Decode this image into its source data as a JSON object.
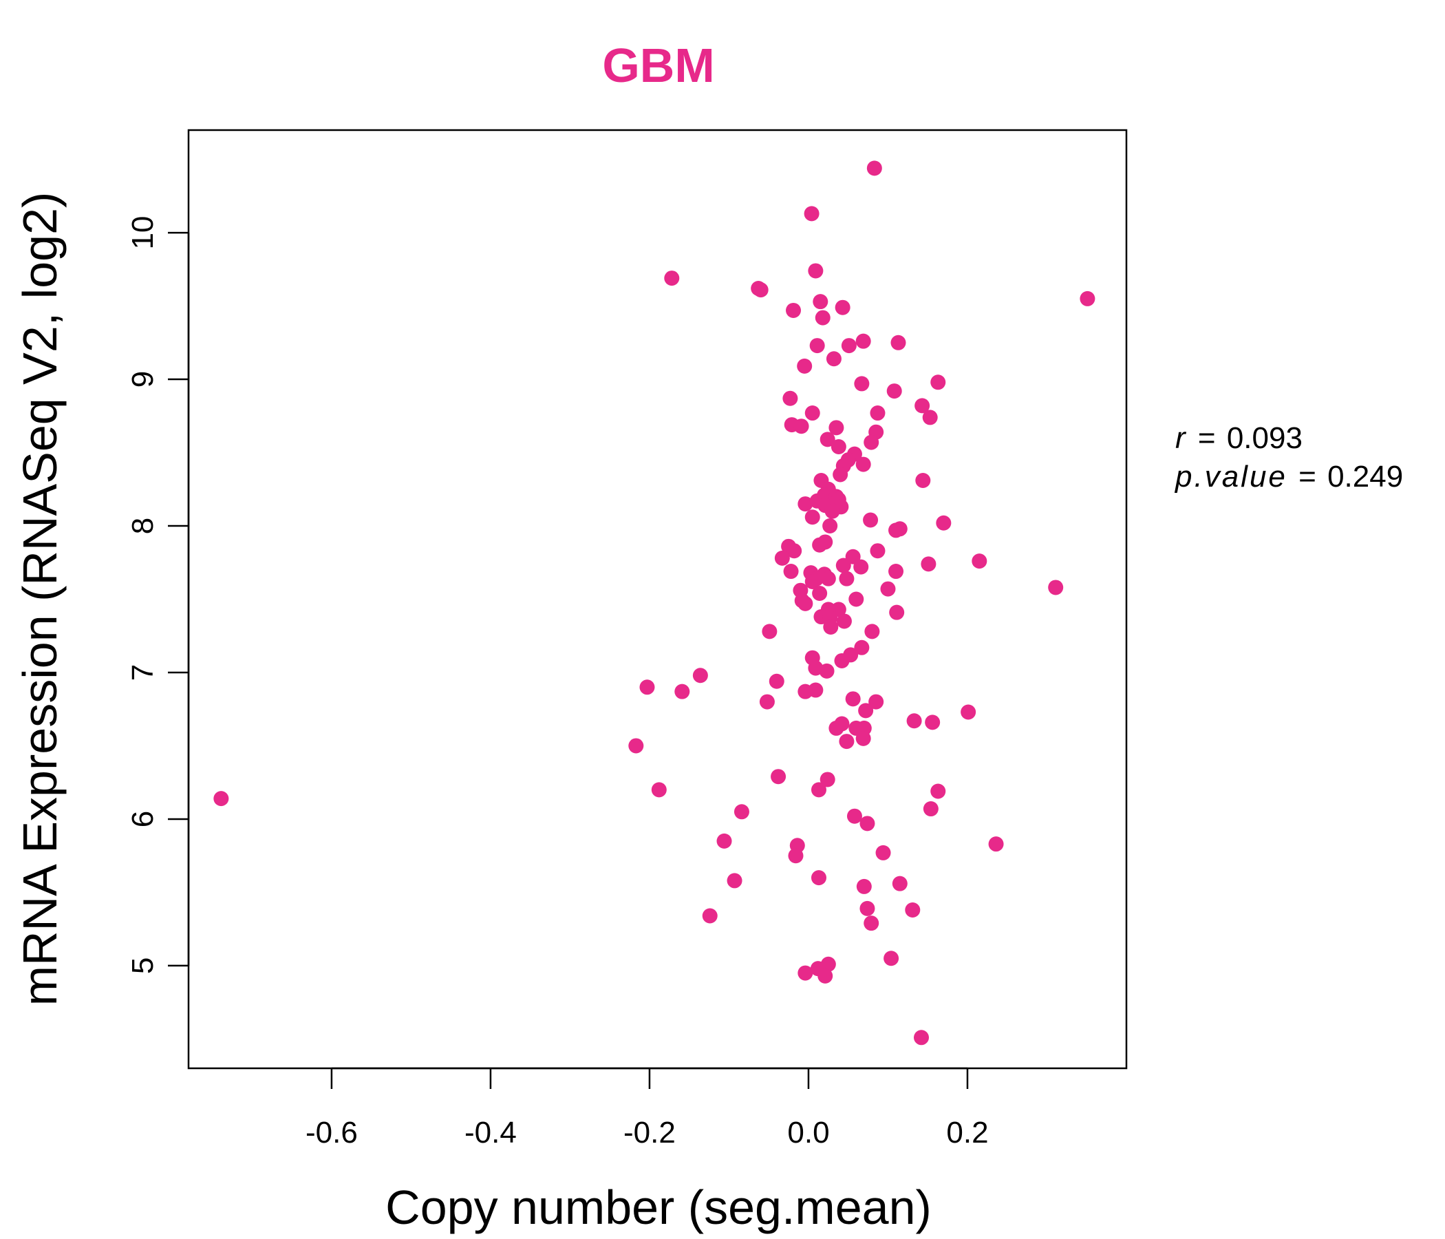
{
  "colors": {
    "accent": "#e7298a",
    "axis": "#000000"
  },
  "chart_data": {
    "type": "scatter",
    "title": "GBM",
    "xlabel": "Copy number (seg.mean)",
    "ylabel": "mRNA Expression (RNASeq V2, log2)",
    "xlim": [
      -0.78,
      0.4
    ],
    "ylim": [
      4.3,
      10.7
    ],
    "x_ticks": [
      -0.6,
      -0.4,
      -0.2,
      0.0,
      0.2
    ],
    "x_tick_labels": [
      "-0.6",
      "-0.4",
      "-0.2",
      "0.0",
      "0.2"
    ],
    "y_ticks": [
      5,
      6,
      7,
      8,
      9,
      10
    ],
    "y_tick_labels": [
      "5",
      "6",
      "7",
      "8",
      "9",
      "10"
    ],
    "grid": false,
    "legend": "none",
    "stats": {
      "r_label": "r",
      "r_value": "0.093",
      "p_label": "p.value",
      "p_value": "0.249"
    },
    "points": [
      [
        0.083,
        10.44
      ],
      [
        0.004,
        10.13
      ],
      [
        0.009,
        9.74
      ],
      [
        -0.172,
        9.69
      ],
      [
        -0.063,
        9.62
      ],
      [
        -0.06,
        9.61
      ],
      [
        0.351,
        9.55
      ],
      [
        0.015,
        9.53
      ],
      [
        0.043,
        9.49
      ],
      [
        -0.019,
        9.47
      ],
      [
        0.018,
        9.42
      ],
      [
        0.069,
        9.26
      ],
      [
        0.113,
        9.25
      ],
      [
        0.011,
        9.23
      ],
      [
        0.051,
        9.23
      ],
      [
        0.032,
        9.14
      ],
      [
        -0.005,
        9.09
      ],
      [
        0.163,
        8.98
      ],
      [
        0.067,
        8.97
      ],
      [
        0.108,
        8.92
      ],
      [
        -0.023,
        8.87
      ],
      [
        0.143,
        8.82
      ],
      [
        0.087,
        8.77
      ],
      [
        0.005,
        8.77
      ],
      [
        0.153,
        8.74
      ],
      [
        -0.021,
        8.69
      ],
      [
        -0.009,
        8.68
      ],
      [
        0.035,
        8.67
      ],
      [
        0.085,
        8.64
      ],
      [
        0.024,
        8.59
      ],
      [
        0.079,
        8.57
      ],
      [
        0.038,
        8.54
      ],
      [
        0.058,
        8.49
      ],
      [
        0.05,
        8.45
      ],
      [
        0.069,
        8.42
      ],
      [
        0.044,
        8.41
      ],
      [
        0.04,
        8.35
      ],
      [
        0.144,
        8.31
      ],
      [
        0.016,
        8.31
      ],
      [
        0.025,
        8.25
      ],
      [
        0.02,
        8.21
      ],
      [
        0.035,
        8.2
      ],
      [
        0.038,
        8.18
      ],
      [
        -0.004,
        8.15
      ],
      [
        0.011,
        8.17
      ],
      [
        0.021,
        8.14
      ],
      [
        0.041,
        8.13
      ],
      [
        0.03,
        8.1
      ],
      [
        0.005,
        8.06
      ],
      [
        0.078,
        8.04
      ],
      [
        0.17,
        8.02
      ],
      [
        0.027,
        8.0
      ],
      [
        0.115,
        7.98
      ],
      [
        0.11,
        7.97
      ],
      [
        0.021,
        7.89
      ],
      [
        0.014,
        7.87
      ],
      [
        -0.025,
        7.86
      ],
      [
        -0.018,
        7.83
      ],
      [
        0.087,
        7.83
      ],
      [
        -0.033,
        7.78
      ],
      [
        0.056,
        7.79
      ],
      [
        0.215,
        7.76
      ],
      [
        0.151,
        7.74
      ],
      [
        0.044,
        7.73
      ],
      [
        0.066,
        7.72
      ],
      [
        -0.022,
        7.69
      ],
      [
        0.11,
        7.69
      ],
      [
        0.003,
        7.68
      ],
      [
        0.02,
        7.67
      ],
      [
        0.048,
        7.64
      ],
      [
        0.025,
        7.64
      ],
      [
        0.01,
        7.64
      ],
      [
        0.005,
        7.62
      ],
      [
        0.311,
        7.58
      ],
      [
        0.1,
        7.57
      ],
      [
        -0.01,
        7.56
      ],
      [
        0.014,
        7.54
      ],
      [
        0.06,
        7.5
      ],
      [
        -0.008,
        7.49
      ],
      [
        -0.004,
        7.47
      ],
      [
        0.038,
        7.43
      ],
      [
        0.025,
        7.43
      ],
      [
        0.111,
        7.41
      ],
      [
        0.016,
        7.38
      ],
      [
        0.027,
        7.37
      ],
      [
        0.045,
        7.35
      ],
      [
        0.028,
        7.31
      ],
      [
        -0.049,
        7.28
      ],
      [
        0.08,
        7.28
      ],
      [
        0.067,
        7.17
      ],
      [
        0.053,
        7.12
      ],
      [
        0.042,
        7.08
      ],
      [
        0.005,
        7.1
      ],
      [
        0.009,
        7.03
      ],
      [
        0.023,
        7.01
      ],
      [
        -0.136,
        6.98
      ],
      [
        -0.04,
        6.94
      ],
      [
        -0.203,
        6.9
      ],
      [
        0.009,
        6.88
      ],
      [
        -0.159,
        6.87
      ],
      [
        -0.004,
        6.87
      ],
      [
        0.056,
        6.82
      ],
      [
        0.085,
        6.8
      ],
      [
        -0.052,
        6.8
      ],
      [
        0.072,
        6.74
      ],
      [
        0.201,
        6.73
      ],
      [
        0.133,
        6.67
      ],
      [
        0.156,
        6.66
      ],
      [
        0.042,
        6.65
      ],
      [
        0.035,
        6.62
      ],
      [
        0.06,
        6.62
      ],
      [
        0.07,
        6.62
      ],
      [
        0.069,
        6.55
      ],
      [
        0.048,
        6.53
      ],
      [
        -0.217,
        6.5
      ],
      [
        -0.038,
        6.29
      ],
      [
        0.024,
        6.27
      ],
      [
        -0.188,
        6.2
      ],
      [
        0.013,
        6.2
      ],
      [
        0.163,
        6.19
      ],
      [
        -0.084,
        6.05
      ],
      [
        0.154,
        6.07
      ],
      [
        0.058,
        6.02
      ],
      [
        0.074,
        5.97
      ],
      [
        -0.106,
        5.85
      ],
      [
        0.236,
        5.83
      ],
      [
        -0.014,
        5.82
      ],
      [
        0.094,
        5.77
      ],
      [
        -0.016,
        5.75
      ],
      [
        0.013,
        5.6
      ],
      [
        -0.093,
        5.58
      ],
      [
        0.115,
        5.56
      ],
      [
        0.07,
        5.54
      ],
      [
        0.074,
        5.39
      ],
      [
        0.131,
        5.38
      ],
      [
        -0.124,
        5.34
      ],
      [
        0.079,
        5.29
      ],
      [
        0.104,
        5.05
      ],
      [
        0.025,
        5.01
      ],
      [
        0.012,
        4.98
      ],
      [
        -0.004,
        4.95
      ],
      [
        0.021,
        4.93
      ],
      [
        0.142,
        4.51
      ],
      [
        -0.739,
        6.14
      ]
    ]
  }
}
